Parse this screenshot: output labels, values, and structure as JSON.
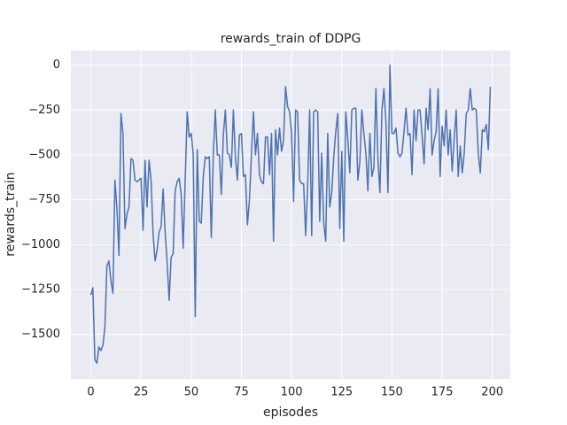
{
  "chart_data": {
    "type": "line",
    "title": "rewards_train of DDPG",
    "xlabel": "episodes",
    "ylabel": "rewards_train",
    "xlim": [
      -9.95,
      208.95
    ],
    "ylim": [
      -1748,
      82
    ],
    "grid": true,
    "background": "#eaeaf2",
    "xticks": [
      0,
      25,
      50,
      75,
      100,
      125,
      150,
      175,
      200
    ],
    "yticks": [
      0,
      {
        "value": -250,
        "label": "−250"
      },
      {
        "value": -500,
        "label": "−500"
      },
      {
        "value": -750,
        "label": "−750"
      },
      {
        "value": -1000,
        "label": "−1000"
      },
      {
        "value": -1250,
        "label": "−1250"
      },
      {
        "value": -1500,
        "label": "−1500"
      }
    ],
    "x": [
      0,
      1,
      2,
      3,
      4,
      5,
      6,
      7,
      8,
      9,
      10,
      11,
      12,
      13,
      14,
      15,
      16,
      17,
      18,
      19,
      20,
      21,
      22,
      23,
      24,
      25,
      26,
      27,
      28,
      29,
      30,
      31,
      32,
      33,
      34,
      35,
      36,
      37,
      38,
      39,
      40,
      41,
      42,
      43,
      44,
      45,
      46,
      47,
      48,
      49,
      50,
      51,
      52,
      53,
      54,
      55,
      56,
      57,
      58,
      59,
      60,
      61,
      62,
      63,
      64,
      65,
      66,
      67,
      68,
      69,
      70,
      71,
      72,
      73,
      74,
      75,
      76,
      77,
      78,
      79,
      80,
      81,
      82,
      83,
      84,
      85,
      86,
      87,
      88,
      89,
      90,
      91,
      92,
      93,
      94,
      95,
      96,
      97,
      98,
      99,
      100,
      101,
      102,
      103,
      104,
      105,
      106,
      107,
      108,
      109,
      110,
      111,
      112,
      113,
      114,
      115,
      116,
      117,
      118,
      119,
      120,
      121,
      122,
      123,
      124,
      125,
      126,
      127,
      128,
      129,
      130,
      131,
      132,
      133,
      134,
      135,
      136,
      137,
      138,
      139,
      140,
      141,
      142,
      143,
      144,
      145,
      146,
      147,
      148,
      149,
      150,
      151,
      152,
      153,
      154,
      155,
      156,
      157,
      158,
      159,
      160,
      161,
      162,
      163,
      164,
      165,
      166,
      167,
      168,
      169,
      170,
      171,
      172,
      173,
      174,
      175,
      176,
      177,
      178,
      179,
      180,
      181,
      182,
      183,
      184,
      185,
      186,
      187,
      188,
      189,
      190,
      191,
      192,
      193,
      194,
      195,
      196,
      197,
      198,
      199
    ],
    "series": [
      {
        "name": "rewards_train",
        "color": "#4c72b0",
        "values": [
          -1280,
          -1240,
          -1640,
          -1660,
          -1570,
          -1590,
          -1560,
          -1460,
          -1120,
          -1090,
          -1200,
          -1270,
          -640,
          -800,
          -1060,
          -270,
          -380,
          -910,
          -830,
          -790,
          -520,
          -530,
          -640,
          -650,
          -640,
          -630,
          -920,
          -530,
          -790,
          -530,
          -640,
          -940,
          -1090,
          -1030,
          -930,
          -900,
          -690,
          -930,
          -1100,
          -1310,
          -1070,
          -1050,
          -700,
          -650,
          -630,
          -720,
          -1020,
          -640,
          -260,
          -400,
          -380,
          -500,
          -1400,
          -470,
          -870,
          -880,
          -620,
          -510,
          -520,
          -510,
          -960,
          -500,
          -250,
          -500,
          -500,
          -720,
          -390,
          -250,
          -490,
          -500,
          -570,
          -250,
          -510,
          -640,
          -390,
          -380,
          -620,
          -610,
          -890,
          -750,
          -500,
          -260,
          -500,
          -380,
          -610,
          -650,
          -660,
          -400,
          -400,
          -610,
          -380,
          -980,
          -360,
          -500,
          -350,
          -480,
          -420,
          -120,
          -230,
          -260,
          -380,
          -760,
          -250,
          -260,
          -640,
          -660,
          -660,
          -950,
          -670,
          -250,
          -950,
          -260,
          -250,
          -260,
          -870,
          -490,
          -880,
          -980,
          -380,
          -790,
          -710,
          -510,
          -370,
          -270,
          -910,
          -480,
          -980,
          -260,
          -410,
          -600,
          -250,
          -240,
          -240,
          -640,
          -540,
          -250,
          -380,
          -490,
          -700,
          -380,
          -620,
          -570,
          -130,
          -520,
          -710,
          -250,
          -130,
          -320,
          -710,
          0,
          -380,
          -380,
          -350,
          -490,
          -510,
          -490,
          -370,
          -240,
          -390,
          -380,
          -610,
          -250,
          -420,
          -250,
          -250,
          -390,
          -550,
          -240,
          -360,
          -130,
          -500,
          -420,
          -370,
          -130,
          -620,
          -340,
          -450,
          -250,
          -500,
          -360,
          -590,
          -410,
          -250,
          -620,
          -450,
          -600,
          -490,
          -270,
          -250,
          -130,
          -250,
          -240,
          -250,
          -490,
          -600,
          -360,
          -370,
          -330,
          -470,
          -120
        ]
      }
    ]
  }
}
